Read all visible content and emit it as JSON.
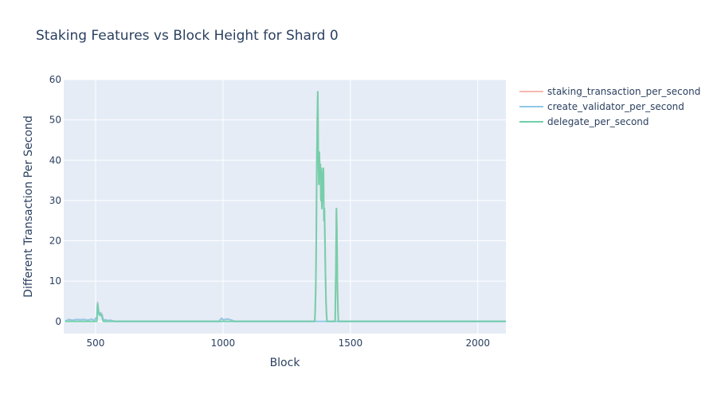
{
  "chart_data": {
    "type": "line",
    "title": "Staking Features vs Block Height for Shard 0",
    "xlabel": "Block",
    "ylabel": "Different Transaction Per Second",
    "xlim": [
      375,
      2110
    ],
    "ylim": [
      -3,
      60
    ],
    "xticks": [
      500,
      1000,
      1500,
      2000
    ],
    "yticks": [
      0,
      10,
      20,
      30,
      40,
      50,
      60
    ],
    "grid": true,
    "legend_position": "right",
    "colors": {
      "plot_bg": "#e5ecf6",
      "grid": "#ffffff",
      "staking_transaction_per_second": "#f8b9b0",
      "create_validator_per_second": "#8ec8e8",
      "delegate_per_second": "#6fd0aa"
    },
    "series": [
      {
        "name": "staking_transaction_per_second",
        "x": [
          380,
          395,
          410,
          425,
          440,
          455,
          470,
          485,
          495,
          500,
          505,
          508,
          512,
          516,
          520,
          525,
          530,
          540,
          550,
          560,
          575,
          600,
          800,
          985,
          990,
          995,
          1000,
          1010,
          1020,
          1035,
          1045,
          1300,
          1360,
          1362,
          1364,
          1366,
          1368,
          1370,
          1372,
          1374,
          1376,
          1378,
          1380,
          1382,
          1384,
          1386,
          1388,
          1390,
          1392,
          1394,
          1396,
          1398,
          1400,
          1402,
          1404,
          1406,
          1408,
          1410,
          1412,
          1420,
          1430,
          1440,
          1441,
          1443,
          1445,
          1447,
          1449,
          1451,
          1453,
          1460,
          1600,
          1800,
          2000,
          2110
        ],
        "y": [
          0,
          0.5,
          0.3,
          0.5,
          0.4,
          0.5,
          0.3,
          0.6,
          0.2,
          0.8,
          0.5,
          4.8,
          2.5,
          2.0,
          2.2,
          1.8,
          0.3,
          0.4,
          0.2,
          0.3,
          0,
          0,
          0,
          0,
          0.5,
          0.8,
          0.4,
          0.5,
          0.6,
          0.3,
          0,
          0,
          0,
          3,
          9,
          20,
          38,
          50,
          57,
          40,
          34,
          42,
          37,
          39,
          30,
          38,
          28,
          33,
          36,
          38,
          25,
          28,
          20,
          12,
          5,
          2,
          0,
          0,
          0,
          0,
          0,
          0,
          5,
          13,
          28,
          22,
          8,
          3,
          0,
          0,
          0,
          0,
          0,
          0
        ]
      },
      {
        "name": "create_validator_per_second",
        "x": [
          380,
          395,
          410,
          425,
          440,
          455,
          470,
          485,
          495,
          500,
          505,
          508,
          512,
          516,
          520,
          525,
          530,
          540,
          550,
          560,
          575,
          600,
          800,
          985,
          990,
          995,
          1000,
          1010,
          1020,
          1035,
          1045,
          1300,
          2110
        ],
        "y": [
          0,
          0.5,
          0.3,
          0.5,
          0.4,
          0.5,
          0.3,
          0.6,
          0.2,
          0.8,
          0.5,
          4.6,
          2.4,
          1.9,
          2.1,
          1.7,
          0.3,
          0.4,
          0.2,
          0.3,
          0,
          0,
          0,
          0,
          0.5,
          0.8,
          0.4,
          0.5,
          0.6,
          0.3,
          0,
          0,
          0
        ]
      },
      {
        "name": "delegate_per_second",
        "x": [
          380,
          500,
          505,
          508,
          512,
          516,
          520,
          525,
          530,
          600,
          1300,
          1360,
          1362,
          1364,
          1366,
          1368,
          1370,
          1372,
          1374,
          1376,
          1378,
          1380,
          1382,
          1384,
          1386,
          1388,
          1390,
          1392,
          1394,
          1396,
          1398,
          1400,
          1402,
          1404,
          1406,
          1408,
          1410,
          1412,
          1420,
          1430,
          1440,
          1441,
          1443,
          1445,
          1447,
          1449,
          1451,
          1453,
          1460,
          1600,
          1800,
          2000,
          2110
        ],
        "y": [
          0,
          0,
          0,
          4.2,
          2.0,
          1.5,
          1.8,
          1.2,
          0,
          0,
          0,
          0,
          3,
          9,
          20,
          38,
          50,
          57,
          40,
          34,
          42,
          37,
          39,
          30,
          38,
          28,
          33,
          36,
          38,
          25,
          28,
          20,
          12,
          5,
          2,
          0,
          0,
          0,
          0,
          0,
          0,
          5,
          13,
          28,
          22,
          8,
          3,
          0,
          0,
          0,
          0,
          0,
          0
        ]
      }
    ]
  }
}
